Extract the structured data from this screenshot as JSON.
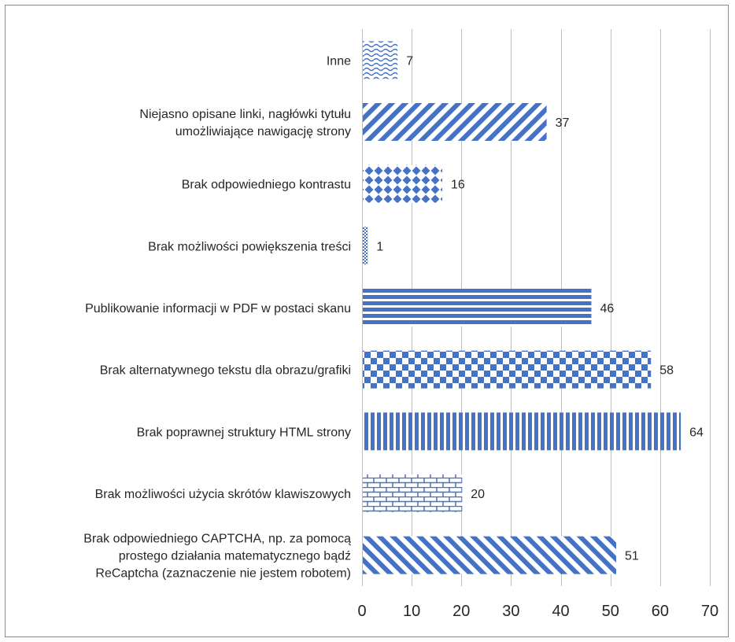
{
  "chart_data": {
    "type": "bar",
    "orientation": "horizontal",
    "categories": [
      "Inne",
      "Niejasno opisane linki, nagłówki tytułu umożliwiające nawigację strony",
      "Brak odpowiedniego kontrastu",
      "Brak możliwości powiększenia treści",
      "Publikowanie informacji w PDF w postaci skanu",
      "Brak alternatywnego tekstu dla obrazu/grafiki",
      "Brak poprawnej struktury HTML strony",
      "Brak możliwości użycia skrótów klawiszowych",
      "Brak odpowiedniego CAPTCHA, np. za pomocą prostego działania matematycznego bądź ReCaptcha (zaznaczenie nie jestem robotem)"
    ],
    "category_lines": [
      [
        "Inne"
      ],
      [
        "Niejasno opisane linki, nagłówki tytułu",
        "umożliwiające nawigację strony"
      ],
      [
        "Brak odpowiedniego kontrastu"
      ],
      [
        "Brak możliwości powiększenia treści"
      ],
      [
        "Publikowanie informacji w PDF w postaci skanu"
      ],
      [
        "Brak alternatywnego tekstu dla obrazu/grafiki"
      ],
      [
        "Brak poprawnej struktury HTML strony"
      ],
      [
        "Brak możliwości użycia skrótów klawiszowych"
      ],
      [
        "Brak odpowiedniego CAPTCHA, np. za pomocą",
        "prostego działania matematycznego bądź",
        "ReCaptcha (zaznaczenie nie jestem robotem)"
      ]
    ],
    "values": [
      7,
      37,
      16,
      1,
      46,
      58,
      64,
      20,
      51
    ],
    "patterns": [
      "wave",
      "diagonal-up",
      "diamonds",
      "small-check",
      "horizontal-stripes",
      "checker",
      "vertical-stripes",
      "bricks",
      "diagonal-down"
    ],
    "xlim": [
      0,
      70
    ],
    "xticks": [
      "0",
      "10",
      "20",
      "30",
      "40",
      "50",
      "60",
      "70"
    ],
    "grid": true,
    "bar_color": "#4472c4",
    "title": "",
    "xlabel": "",
    "ylabel": ""
  }
}
